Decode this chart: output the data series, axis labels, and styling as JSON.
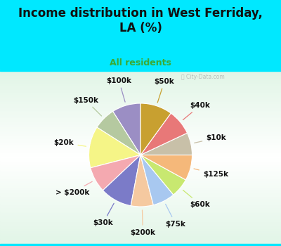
{
  "title": "Income distribution in West Ferriday,\nLA (%)",
  "subtitle": "All residents",
  "title_color": "#111111",
  "subtitle_color": "#3aaa35",
  "bg_cyan": "#00e8ff",
  "watermark": "City-Data.com",
  "slices": [
    {
      "label": "$100k",
      "value": 9,
      "color": "#9b8ec4"
    },
    {
      "label": "$150k",
      "value": 7,
      "color": "#b5c9a0"
    },
    {
      "label": "$20k",
      "value": 13,
      "color": "#f5f587"
    },
    {
      "label": "> $200k",
      "value": 8,
      "color": "#f4a9b0"
    },
    {
      "label": "$30k",
      "value": 10,
      "color": "#7b7bc8"
    },
    {
      "label": "$200k",
      "value": 7,
      "color": "#f5c9a0"
    },
    {
      "label": "$75k",
      "value": 7,
      "color": "#a8c8f0"
    },
    {
      "label": "$60k",
      "value": 6,
      "color": "#c8e870"
    },
    {
      "label": "$125k",
      "value": 8,
      "color": "#f5b87a"
    },
    {
      "label": "$10k",
      "value": 7,
      "color": "#c8c0a8"
    },
    {
      "label": "$40k",
      "value": 8,
      "color": "#e87878"
    },
    {
      "label": "$50k",
      "value": 10,
      "color": "#c8a030"
    }
  ],
  "label_fontsize": 7.5,
  "label_color": "#111111",
  "title_fontsize": 12,
  "subtitle_fontsize": 9
}
